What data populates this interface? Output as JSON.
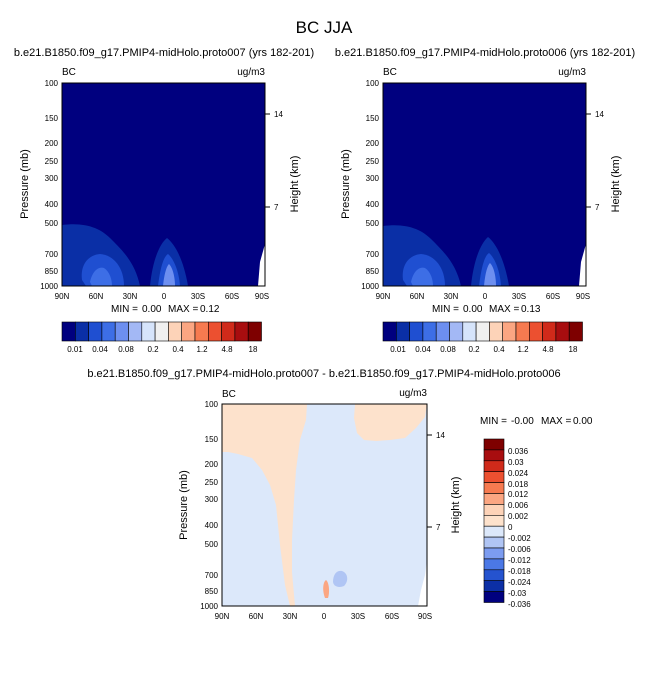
{
  "chart_data": {
    "type": "contour",
    "title": "BC JJA",
    "panels": [
      {
        "id": "p1",
        "subtitle": "b.e21.B1850.f09_g17.PMIP4-midHolo.proto007 (yrs 182-201)",
        "left_label": "BC",
        "right_label": "ug/m3",
        "ylabel": "Pressure (mb)",
        "ylabel_right": "Height (km)",
        "yticks": [
          "100",
          "150",
          "200",
          "250",
          "300",
          "400",
          "500",
          "700",
          "850",
          "1000"
        ],
        "height_ticks": [
          "14",
          "7"
        ],
        "xticks": [
          "90N",
          "60N",
          "30N",
          "0",
          "30S",
          "60S",
          "90S"
        ],
        "min_label": "MIN =",
        "min_value": "0.00",
        "max_label": "MAX =",
        "max_value": "0.12",
        "colorbar_levels": [
          "0.01",
          "0.04",
          "0.08",
          "0.2",
          "0.4",
          "1.2",
          "4.8",
          "18"
        ]
      },
      {
        "id": "p2",
        "subtitle": "b.e21.B1850.f09_g17.PMIP4-midHolo.proto006 (yrs 182-201)",
        "left_label": "BC",
        "right_label": "ug/m3",
        "ylabel": "Pressure (mb)",
        "ylabel_right": "Height (km)",
        "yticks": [
          "100",
          "150",
          "200",
          "250",
          "300",
          "400",
          "500",
          "700",
          "850",
          "1000"
        ],
        "height_ticks": [
          "14",
          "7"
        ],
        "xticks": [
          "90N",
          "60N",
          "30N",
          "0",
          "30S",
          "60S",
          "90S"
        ],
        "min_label": "MIN =",
        "min_value": "0.00",
        "max_label": "MAX =",
        "max_value": "0.13",
        "colorbar_levels": [
          "0.01",
          "0.04",
          "0.08",
          "0.2",
          "0.4",
          "1.2",
          "4.8",
          "18"
        ]
      },
      {
        "id": "p3",
        "subtitle": "b.e21.B1850.f09_g17.PMIP4-midHolo.proto007 - b.e21.B1850.f09_g17.PMIP4-midHolo.proto006",
        "left_label": "BC",
        "right_label": "ug/m3",
        "ylabel": "Pressure (mb)",
        "ylabel_right": "Height (km)",
        "yticks": [
          "100",
          "150",
          "200",
          "250",
          "300",
          "400",
          "500",
          "700",
          "850",
          "1000"
        ],
        "height_ticks": [
          "14",
          "7"
        ],
        "xticks": [
          "90N",
          "60N",
          "30N",
          "0",
          "30S",
          "60S",
          "90S"
        ],
        "min_label": "MIN =",
        "min_value": "-0.00",
        "max_label": "MAX =",
        "max_value": "0.00",
        "colorbar_levels": [
          "0.036",
          "0.03",
          "0.024",
          "0.018",
          "0.012",
          "0.006",
          "0.002",
          "0",
          "-0.002",
          "-0.006",
          "-0.012",
          "-0.018",
          "-0.024",
          "-0.03",
          "-0.036"
        ]
      }
    ],
    "abs_colors": [
      "#00007f",
      "#0a2fa6",
      "#1f4fd1",
      "#3d6ee6",
      "#6d8ff0",
      "#a3b8f5",
      "#d6e4fb",
      "#f0f0f0",
      "#fdd3b8",
      "#fba682",
      "#f67a50",
      "#ec5030",
      "#d02a1a",
      "#a80d0f",
      "#7e0000"
    ],
    "diff_colors": [
      "#7e0000",
      "#a80d0f",
      "#d02a1a",
      "#ec5030",
      "#f67a50",
      "#fba682",
      "#fdd3b8",
      "#fde2cc",
      "#dce8fa",
      "#b0c5f4",
      "#7c9cf0",
      "#4b78e6",
      "#2553cf",
      "#0c2fa6",
      "#00007f"
    ]
  }
}
